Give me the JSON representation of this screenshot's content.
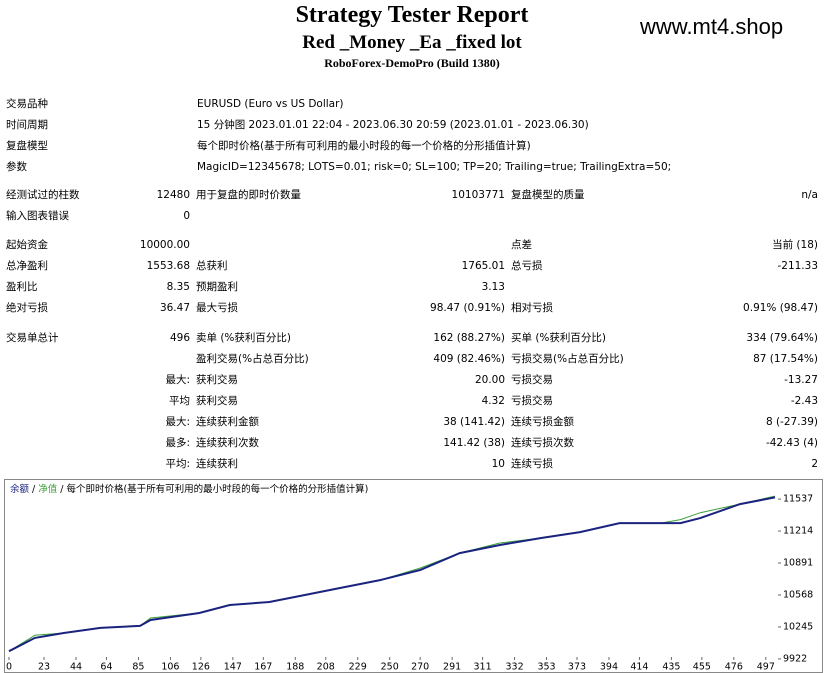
{
  "header": {
    "title": "Strategy Tester Report",
    "subtitle": "Red _Money _Ea _fixed lot",
    "server": "RoboForex-DemoPro (Build 1380)",
    "site": "www.mt4.shop"
  },
  "info": [
    [
      "交易品种",
      "EURUSD (Euro vs US Dollar)"
    ],
    [
      "时间周期",
      "15 分钟图 2023.01.01 22:04 - 2023.06.30 20:59 (2023.01.01 - 2023.06.30)"
    ],
    [
      "复盘模型",
      "每个即时价格(基于所有可利用的最小时段的每一个价格的分形插值计算)"
    ],
    [
      "参数",
      "MagicID=12345678; LOTS=0.01; risk=0; SL=100; TP=20; Trailing=true; TrailingExtra=50;"
    ]
  ],
  "stats": [
    [
      [
        "经测试过的柱数",
        "12480",
        "用于复盘的即时价数量",
        "10103771",
        "复盘模型的质量",
        "n/a"
      ],
      [
        "输入图表错误",
        "0",
        null,
        null,
        null,
        null
      ]
    ],
    [
      [
        "起始资金",
        "10000.00",
        null,
        null,
        "点差",
        "当前 (18)"
      ],
      [
        "总净盈利",
        "1553.68",
        "总获利",
        "1765.01",
        "总亏损",
        "-211.33"
      ],
      [
        "盈利比",
        "8.35",
        "预期盈利",
        "3.13",
        null,
        null
      ],
      [
        "绝对亏损",
        "36.47",
        "最大亏损",
        "98.47 (0.91%)",
        "相对亏损",
        "0.91% (98.47)"
      ]
    ],
    [
      [
        "交易单总计",
        "496",
        "卖单 (%获利百分比)",
        "162 (88.27%)",
        "买单 (%获利百分比)",
        "334 (79.64%)"
      ],
      [
        null,
        null,
        "盈利交易(%占总百分比)",
        "409 (82.46%)",
        "亏损交易(%占总百分比)",
        "87 (17.54%)"
      ],
      [
        null,
        "最大:",
        "获利交易",
        "20.00",
        "亏损交易",
        "-13.27"
      ],
      [
        null,
        "平均",
        "获利交易",
        "4.32",
        "亏损交易",
        "-2.43"
      ],
      [
        null,
        "最大:",
        "连续获利金额",
        "38 (141.42)",
        "连续亏损金额",
        "8 (-27.39)"
      ],
      [
        null,
        "最多:",
        "连续获利次数",
        "141.42 (38)",
        "连续亏损次数",
        "-42.43 (4)"
      ],
      [
        null,
        "平均:",
        "连续获利",
        "10",
        "连续亏损",
        "2"
      ]
    ]
  ],
  "chart_data": {
    "type": "line",
    "legend_separator": "/",
    "model_note": "每个即时价格(基于所有可利用的最小时段的每一个价格的分形插值计算)",
    "x": [
      0,
      17,
      36,
      60,
      86,
      93,
      125,
      145,
      171,
      191,
      217,
      244,
      270,
      296,
      322,
      349,
      375,
      401,
      428,
      441,
      454,
      480,
      503
    ],
    "series": [
      {
        "name": "净值",
        "color": "#3ca03c",
        "values": [
          10000,
          10160,
          10184,
          10235,
          10255,
          10335,
          10386,
          10467,
          10497,
          10558,
          10638,
          10719,
          10840,
          10991,
          11092,
          11143,
          11203,
          11294,
          11294,
          11330,
          11400,
          11486,
          11567
        ]
      },
      {
        "name": "余额",
        "color": "#1a237e",
        "values": [
          10000,
          10134,
          10184,
          10235,
          10255,
          10315,
          10386,
          10467,
          10497,
          10558,
          10638,
          10719,
          10820,
          10991,
          11072,
          11143,
          11203,
          11294,
          11294,
          11294,
          11345,
          11486,
          11554
        ]
      }
    ],
    "xlim": [
      0,
      505
    ],
    "ylim": [
      9830,
      11730
    ],
    "xticks": [
      0,
      23,
      44,
      64,
      85,
      106,
      126,
      147,
      167,
      188,
      208,
      229,
      250,
      270,
      291,
      311,
      332,
      353,
      373,
      394,
      414,
      435,
      455,
      476,
      497
    ],
    "yticks": [
      9922,
      10245,
      10568,
      10891,
      11214,
      11537
    ]
  }
}
